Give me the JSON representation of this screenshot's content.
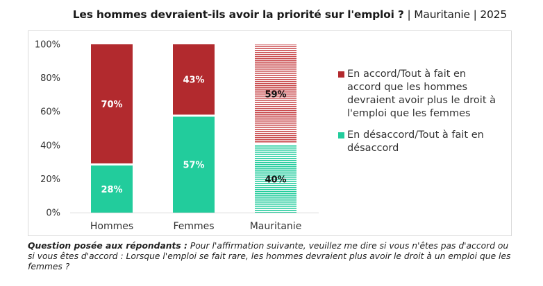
{
  "title": {
    "main": "Les hommes devraient-ils avoir la priorité sur l'emploi ?",
    "sep1": "|",
    "country": "Mauritanie",
    "sep2": "|",
    "year": "2025"
  },
  "colors": {
    "agree": "#b22a2e",
    "disagree": "#22cc9c",
    "agree_hatch": "#c9494c",
    "disagree_hatch": "#22cc9c"
  },
  "chart_data": {
    "type": "bar",
    "stacked": true,
    "categories": [
      "Hommes",
      "Femmes",
      "Mauritanie"
    ],
    "series": [
      {
        "name": "En désaccord/Tout à fait en désaccord",
        "values": [
          28,
          57,
          40
        ],
        "labels": [
          "28%",
          "57%",
          "40%"
        ],
        "color": "#22cc9c"
      },
      {
        "name": "En accord/Tout à fait en accord que les hommes devraient avoir plus le droit à l'emploi que les femmes",
        "values": [
          70,
          43,
          59
        ],
        "labels": [
          "70%",
          "43%",
          "59%"
        ],
        "color": "#b22a2e"
      }
    ],
    "hatched_categories": [
      "Mauritanie"
    ],
    "y_ticks": [
      "0%",
      "20%",
      "40%",
      "60%",
      "80%",
      "100%"
    ],
    "ylim": [
      0,
      100
    ],
    "grid": false,
    "legend_position": "right"
  },
  "legend": [
    {
      "label": "En accord/Tout à fait en accord que les hommes devraient avoir plus le droit à l'emploi que les femmes",
      "color": "#b22a2e"
    },
    {
      "label": "En désaccord/Tout à fait en désaccord",
      "color": "#22cc9c"
    }
  ],
  "footnote": {
    "question_label": "Question posée aux répondants :",
    "text": "Pour l'affirmation suivante, veuillez me dire si vous n'êtes pas d'accord ou si vous êtes d'accord : Lorsque l'emploi se fait rare, les hommes devraient plus avoir le droit à un emploi que les femmes ?"
  }
}
